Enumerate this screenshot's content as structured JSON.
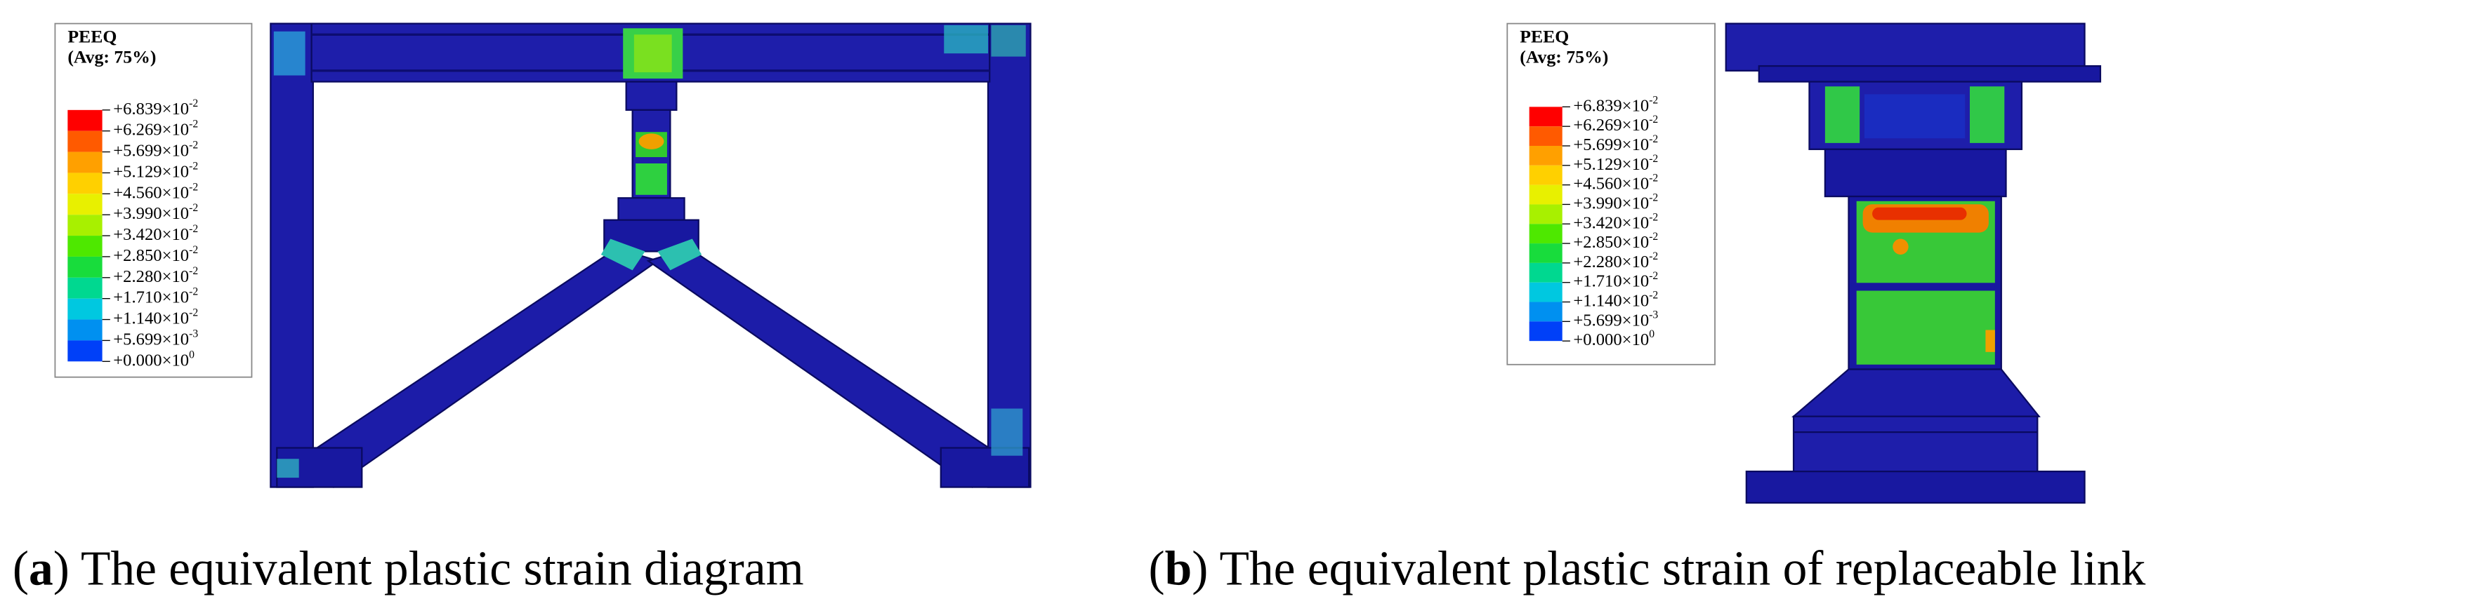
{
  "panels": [
    {
      "legend": {
        "title": "PEEQ",
        "subtitle": "(Avg: 75%)",
        "colors": [
          "#ff0000",
          "#ff5a00",
          "#ffa000",
          "#ffd000",
          "#e8f000",
          "#a8f000",
          "#4ee800",
          "#18dc3c",
          "#00d890",
          "#00c8e0",
          "#0090f0",
          "#0040f8"
        ],
        "labels": [
          {
            "base": "+6.839×10",
            "exp": "-2"
          },
          {
            "base": "+6.269×10",
            "exp": "-2"
          },
          {
            "base": "+5.699×10",
            "exp": "-2"
          },
          {
            "base": "+5.129×10",
            "exp": "-2"
          },
          {
            "base": "+4.560×10",
            "exp": "-2"
          },
          {
            "base": "+3.990×10",
            "exp": "-2"
          },
          {
            "base": "+3.420×10",
            "exp": "-2"
          },
          {
            "base": "+2.850×10",
            "exp": "-2"
          },
          {
            "base": "+2.280×10",
            "exp": "-2"
          },
          {
            "base": "+1.710×10",
            "exp": "-2"
          },
          {
            "base": "+1.140×10",
            "exp": "-2"
          },
          {
            "base": "+5.699×10",
            "exp": "-3"
          },
          {
            "base": "+0.000×10",
            "exp": "0"
          }
        ]
      },
      "caption": {
        "open": "(",
        "label": "a",
        "rest": ") The equivalent plastic strain diagram"
      }
    },
    {
      "legend": {
        "title": "PEEQ",
        "subtitle": "(Avg: 75%)",
        "colors": [
          "#ff0000",
          "#ff5a00",
          "#ffa000",
          "#ffd000",
          "#e8f000",
          "#a8f000",
          "#4ee800",
          "#18dc3c",
          "#00d890",
          "#00c8e0",
          "#0090f0",
          "#0040f8"
        ],
        "labels": [
          {
            "base": "+6.839×10",
            "exp": "-2"
          },
          {
            "base": "+6.269×10",
            "exp": "-2"
          },
          {
            "base": "+5.699×10",
            "exp": "-2"
          },
          {
            "base": "+5.129×10",
            "exp": "-2"
          },
          {
            "base": "+4.560×10",
            "exp": "-2"
          },
          {
            "base": "+3.990×10",
            "exp": "-2"
          },
          {
            "base": "+3.420×10",
            "exp": "-2"
          },
          {
            "base": "+2.850×10",
            "exp": "-2"
          },
          {
            "base": "+2.280×10",
            "exp": "-2"
          },
          {
            "base": "+1.710×10",
            "exp": "-2"
          },
          {
            "base": "+1.140×10",
            "exp": "-2"
          },
          {
            "base": "+5.699×10",
            "exp": "-3"
          },
          {
            "base": "+0.000×10",
            "exp": "0"
          }
        ]
      },
      "caption": {
        "open": "(",
        "label": "b",
        "rest": ") The equivalent plastic strain of replaceable link"
      }
    }
  ]
}
